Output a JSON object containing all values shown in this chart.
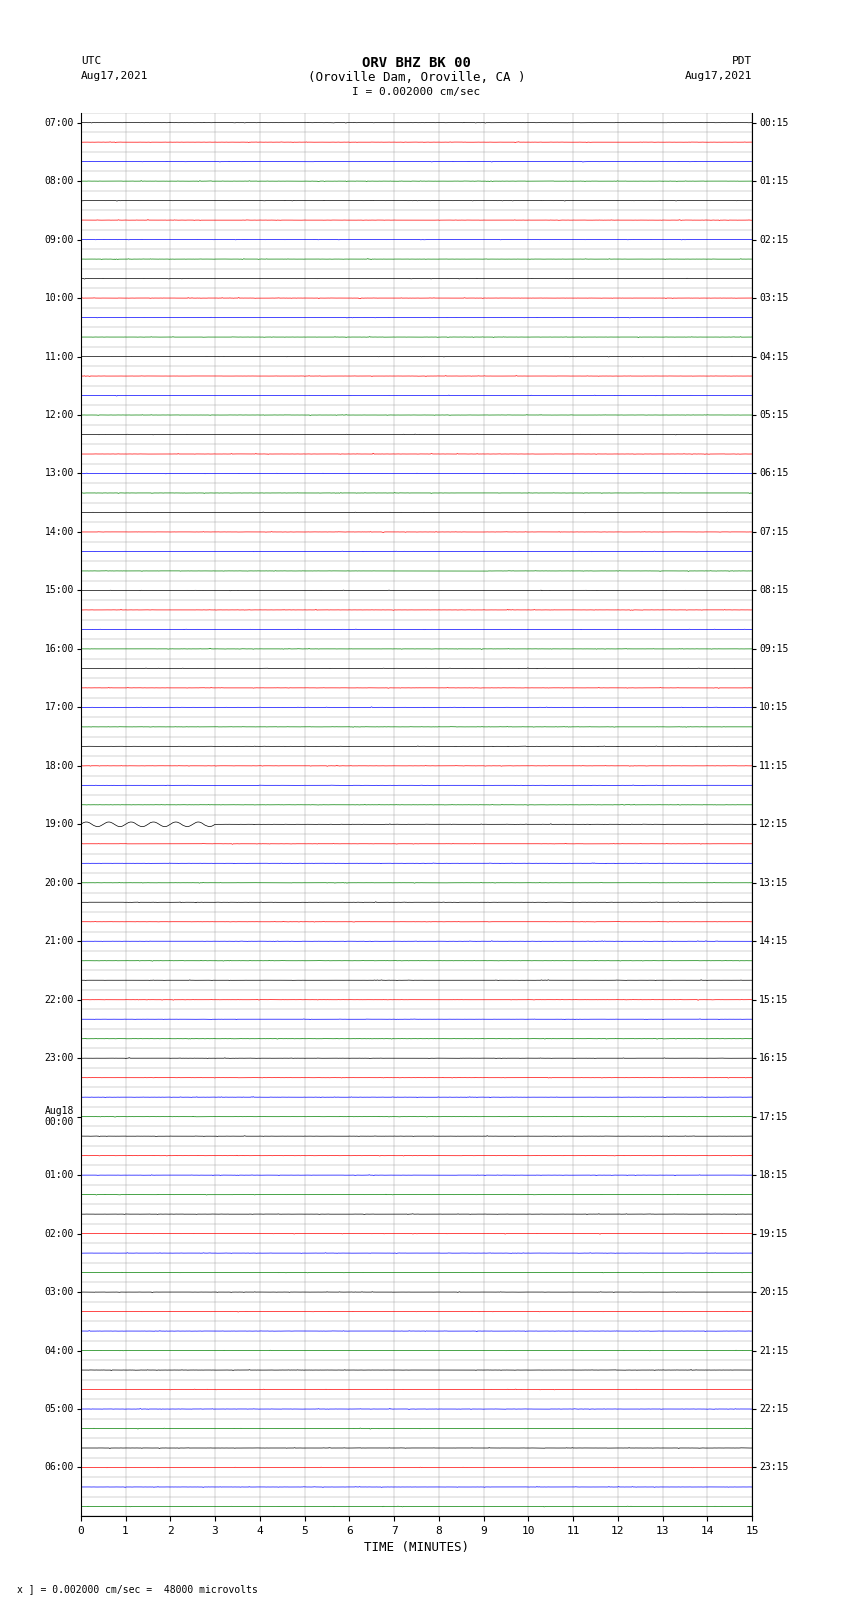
{
  "title_line1": "ORV BHZ BK 00",
  "title_line2": "(Oroville Dam, Oroville, CA )",
  "title_line3": "I = 0.002000 cm/sec",
  "left_header_line1": "UTC",
  "left_header_line2": "Aug17,2021",
  "right_header_line1": "PDT",
  "right_header_line2": "Aug17,2021",
  "bottom_label": "TIME (MINUTES)",
  "bottom_note": "x ] = 0.002000 cm/sec =  48000 microvolts",
  "xlabel_ticks": [
    0,
    1,
    2,
    3,
    4,
    5,
    6,
    7,
    8,
    9,
    10,
    11,
    12,
    13,
    14,
    15
  ],
  "utc_labels": [
    "07:00",
    "",
    "",
    "08:00",
    "",
    "",
    "09:00",
    "",
    "",
    "10:00",
    "",
    "",
    "11:00",
    "",
    "",
    "12:00",
    "",
    "",
    "13:00",
    "",
    "",
    "14:00",
    "",
    "",
    "15:00",
    "",
    "",
    "16:00",
    "",
    "",
    "17:00",
    "",
    "",
    "18:00",
    "",
    "",
    "19:00",
    "",
    "",
    "20:00",
    "",
    "",
    "21:00",
    "",
    "",
    "22:00",
    "",
    "",
    "23:00",
    "",
    "",
    "Aug18\n00:00",
    "",
    "",
    "01:00",
    "",
    "",
    "02:00",
    "",
    "",
    "03:00",
    "",
    "",
    "04:00",
    "",
    "",
    "05:00",
    "",
    "",
    "06:00",
    "",
    ""
  ],
  "pdt_labels": [
    "00:15",
    "",
    "",
    "01:15",
    "",
    "",
    "02:15",
    "",
    "",
    "03:15",
    "",
    "",
    "04:15",
    "",
    "",
    "05:15",
    "",
    "",
    "06:15",
    "",
    "",
    "07:15",
    "",
    "",
    "08:15",
    "",
    "",
    "09:15",
    "",
    "",
    "10:15",
    "",
    "",
    "11:15",
    "",
    "",
    "12:15",
    "",
    "",
    "13:15",
    "",
    "",
    "14:15",
    "",
    "",
    "15:15",
    "",
    "",
    "16:15",
    "",
    "",
    "17:15",
    "",
    "",
    "18:15",
    "",
    "",
    "19:15",
    "",
    "",
    "20:15",
    "",
    "",
    "21:15",
    "",
    "",
    "22:15",
    "",
    "",
    "23:15",
    "",
    ""
  ],
  "num_rows": 72,
  "colors_cycle": [
    "black",
    "red",
    "blue",
    "green"
  ],
  "line_width": 0.5,
  "noise_amplitude": 0.025,
  "background_color": "white",
  "grid_color": "#999999",
  "fig_width": 8.5,
  "fig_height": 16.13,
  "dpi": 100,
  "xmin": 0,
  "xmax": 15,
  "large_event_row": 36,
  "large_event_amplitude": 0.12,
  "samples_per_row": 1800
}
